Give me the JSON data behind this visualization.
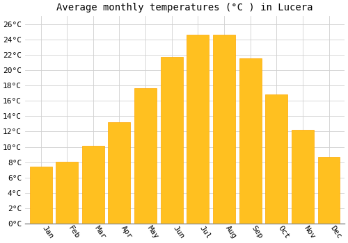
{
  "title": "Average monthly temperatures (°C ) in Lucera",
  "months": [
    "Jan",
    "Feb",
    "Mar",
    "Apr",
    "May",
    "Jun",
    "Jul",
    "Aug",
    "Sep",
    "Oct",
    "Nov",
    "Dec"
  ],
  "temperatures": [
    7.4,
    8.1,
    10.1,
    13.2,
    17.6,
    21.7,
    24.6,
    24.6,
    21.5,
    16.8,
    12.2,
    8.7
  ],
  "bar_color": "#FFC020",
  "bar_edge_color": "#FFA800",
  "background_color": "#FFFFFF",
  "grid_color": "#D0D0D0",
  "ylim": [
    0,
    27
  ],
  "ytick_step": 2,
  "title_fontsize": 10,
  "tick_fontsize": 8,
  "font_family": "monospace",
  "xlabel_rotation": -55,
  "bar_width": 0.85
}
